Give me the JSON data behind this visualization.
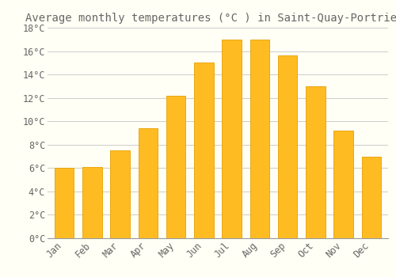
{
  "title": "Average monthly temperatures (°C ) in Saint-Quay-Portrieux",
  "months": [
    "Jan",
    "Feb",
    "Mar",
    "Apr",
    "May",
    "Jun",
    "Jul",
    "Aug",
    "Sep",
    "Oct",
    "Nov",
    "Dec"
  ],
  "values": [
    6.0,
    6.1,
    7.5,
    9.4,
    12.2,
    15.0,
    17.0,
    17.0,
    15.6,
    13.0,
    9.2,
    7.0
  ],
  "bar_color": "#FFBB22",
  "bar_edge_color": "#E8A000",
  "background_color": "#FFFFF5",
  "grid_color": "#CCCCCC",
  "text_color": "#666666",
  "ylim": [
    0,
    18
  ],
  "yticks": [
    0,
    2,
    4,
    6,
    8,
    10,
    12,
    14,
    16,
    18
  ],
  "title_fontsize": 10,
  "tick_fontsize": 8.5,
  "bar_width": 0.7
}
